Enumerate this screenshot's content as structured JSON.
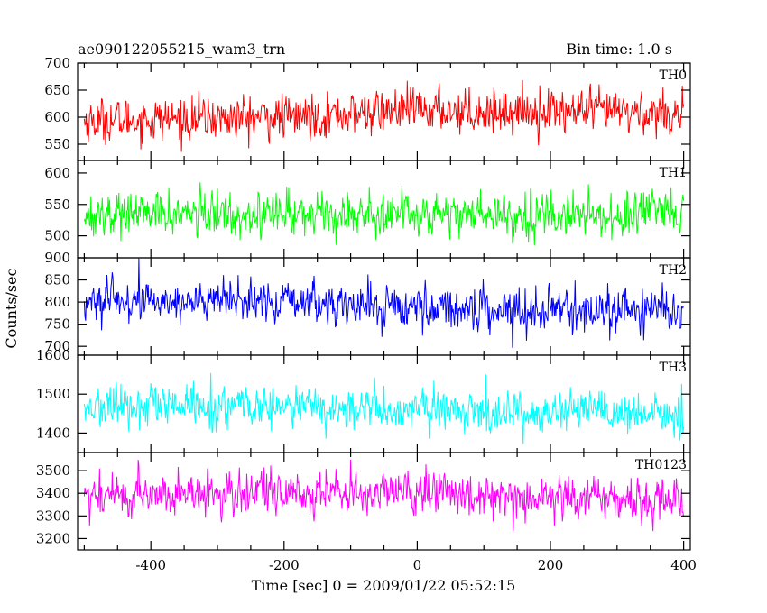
{
  "chart_data": {
    "type": "line",
    "title": "ae090122055215_wam3_trn",
    "subtitle": "Bin time: 1.0 s",
    "xlabel": "Time [sec] 0 = 2009/01/22 05:52:15",
    "ylabel": "Counts/sec",
    "xlim": [
      -510,
      410
    ],
    "x_ticks": [
      -400,
      -200,
      0,
      200,
      400
    ],
    "data_x_range": [
      -500,
      400
    ],
    "bin_time_s": 1.0,
    "panels": [
      {
        "name": "TH0",
        "color": "#ff0000",
        "ylim": [
          520,
          700
        ],
        "y_ticks": [
          550,
          600,
          650,
          700
        ],
        "trend": [
          [
            -500,
            593
          ],
          [
            -350,
            597
          ],
          [
            -200,
            600
          ],
          [
            -100,
            606
          ],
          [
            0,
            614
          ],
          [
            100,
            611
          ],
          [
            200,
            612
          ],
          [
            300,
            609
          ],
          [
            400,
            607
          ]
        ],
        "noise_sigma": 24
      },
      {
        "name": "TH1",
        "color": "#00ff00",
        "ylim": [
          465,
          620
        ],
        "y_ticks": [
          500,
          550,
          600
        ],
        "trend": [
          [
            -500,
            535
          ],
          [
            -300,
            535
          ],
          [
            -100,
            536
          ],
          [
            0,
            537
          ],
          [
            100,
            535
          ],
          [
            200,
            533
          ],
          [
            300,
            532
          ],
          [
            400,
            533
          ]
        ],
        "noise_sigma": 21
      },
      {
        "name": "TH2",
        "color": "#0000ff",
        "ylim": [
          680,
          900
        ],
        "y_ticks": [
          700,
          750,
          800,
          850,
          900
        ],
        "trend": [
          [
            -500,
            800
          ],
          [
            -350,
            803
          ],
          [
            -200,
            800
          ],
          [
            -100,
            793
          ],
          [
            0,
            788
          ],
          [
            100,
            785
          ],
          [
            200,
            782
          ],
          [
            300,
            782
          ],
          [
            400,
            778
          ]
        ],
        "noise_sigma": 28
      },
      {
        "name": "TH3",
        "color": "#00ffff",
        "ylim": [
          1350,
          1600
        ],
        "y_ticks": [
          1400,
          1500,
          1600
        ],
        "trend": [
          [
            -500,
            1465
          ],
          [
            -300,
            1468
          ],
          [
            -100,
            1463
          ],
          [
            0,
            1458
          ],
          [
            100,
            1456
          ],
          [
            200,
            1452
          ],
          [
            300,
            1448
          ],
          [
            400,
            1443
          ]
        ],
        "noise_sigma": 32
      },
      {
        "name": "TH0123",
        "color": "#ff00ff",
        "ylim": [
          3150,
          3580
        ],
        "y_ticks": [
          3200,
          3300,
          3400,
          3500
        ],
        "trend": [
          [
            -500,
            3390
          ],
          [
            -300,
            3398
          ],
          [
            -100,
            3402
          ],
          [
            0,
            3405
          ],
          [
            100,
            3398
          ],
          [
            200,
            3385
          ],
          [
            300,
            3375
          ],
          [
            400,
            3368
          ]
        ],
        "noise_sigma": 58
      }
    ]
  }
}
